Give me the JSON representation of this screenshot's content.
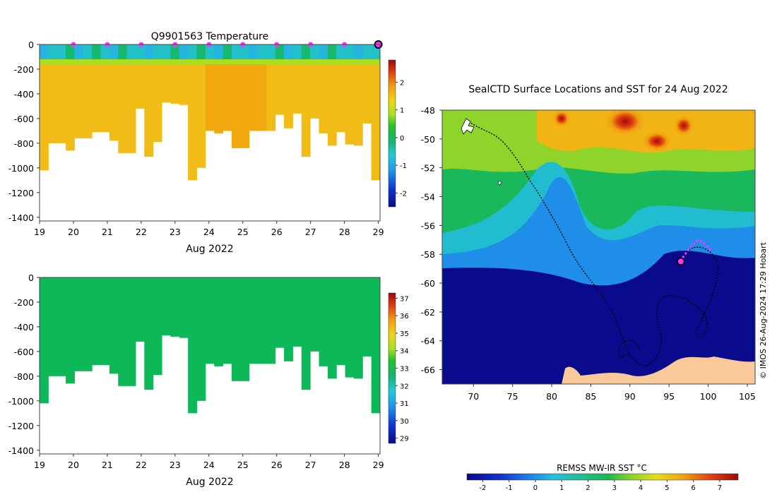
{
  "chart_data": [
    {
      "type": "heatmap",
      "id": "temperature",
      "title": "Q9901563  Temperature",
      "xlabel": "Aug 2022",
      "x_ticks": [
        19,
        20,
        21,
        22,
        23,
        24,
        25,
        26,
        27,
        28,
        29
      ],
      "xlim": [
        19,
        29.05
      ],
      "y_ticks": [
        0,
        -200,
        -400,
        -600,
        -800,
        -1000,
        -1200,
        -1400
      ],
      "ylim": [
        -1430,
        0
      ],
      "colorbar": {
        "ticks": [
          2,
          1,
          0,
          -1,
          -2
        ],
        "range": [
          -2.5,
          2.8
        ]
      },
      "profile_depths": [
        1020,
        800,
        800,
        860,
        760,
        760,
        710,
        710,
        780,
        880,
        880,
        520,
        910,
        790,
        470,
        480,
        490,
        1100,
        1000,
        700,
        720,
        700,
        840,
        840,
        700,
        700,
        700,
        570,
        680,
        560,
        910,
        600,
        720,
        820,
        710,
        810,
        820,
        640,
        1100
      ],
      "markers_x": [
        20,
        21,
        22,
        23,
        24,
        25,
        26,
        27,
        28
      ],
      "last_marker_x": 29
    },
    {
      "type": "heatmap",
      "id": "salinity",
      "xlabel": "Aug 2022",
      "x_ticks": [
        19,
        20,
        21,
        22,
        23,
        24,
        25,
        26,
        27,
        28,
        29
      ],
      "xlim": [
        19,
        29.05
      ],
      "y_ticks": [
        0,
        -200,
        -400,
        -600,
        -800,
        -1000,
        -1200,
        -1400
      ],
      "ylim": [
        -1430,
        0
      ],
      "colorbar": {
        "ticks": [
          37,
          36,
          35,
          34,
          33,
          32,
          31,
          30,
          29
        ],
        "range": [
          28.7,
          37.3
        ]
      },
      "profile_depths": [
        1020,
        800,
        800,
        860,
        760,
        760,
        710,
        710,
        780,
        880,
        880,
        520,
        910,
        790,
        470,
        480,
        490,
        1100,
        1000,
        700,
        720,
        700,
        840,
        840,
        700,
        700,
        700,
        570,
        680,
        560,
        910,
        600,
        720,
        820,
        710,
        810,
        820,
        640,
        1100
      ]
    },
    {
      "type": "heatmap",
      "id": "sst_map",
      "title": "SealCTD Surface Locations and SST for 24 Aug 2022",
      "x_ticks": [
        70,
        75,
        80,
        85,
        90,
        95,
        100,
        105
      ],
      "xlim": [
        66,
        106
      ],
      "y_ticks": [
        -48,
        -50,
        -52,
        -54,
        -56,
        -58,
        -60,
        -62,
        -64,
        -66
      ],
      "ylim": [
        -67,
        -48
      ],
      "current_position": [
        96.5,
        -58.5
      ],
      "colorbar_label": "REMSS MW-IR SST °C",
      "colorbar_ticks": [
        -2,
        -1,
        0,
        1,
        2,
        3,
        4,
        5,
        6,
        7
      ],
      "colorbar_range": [
        -2.6,
        7.7
      ]
    }
  ],
  "watermark": "© IMOS 26-Aug-2024 17:29 Hobart",
  "colors": {
    "marker": "#ff33ff",
    "track": "#000000",
    "land": "#f9c99a"
  }
}
